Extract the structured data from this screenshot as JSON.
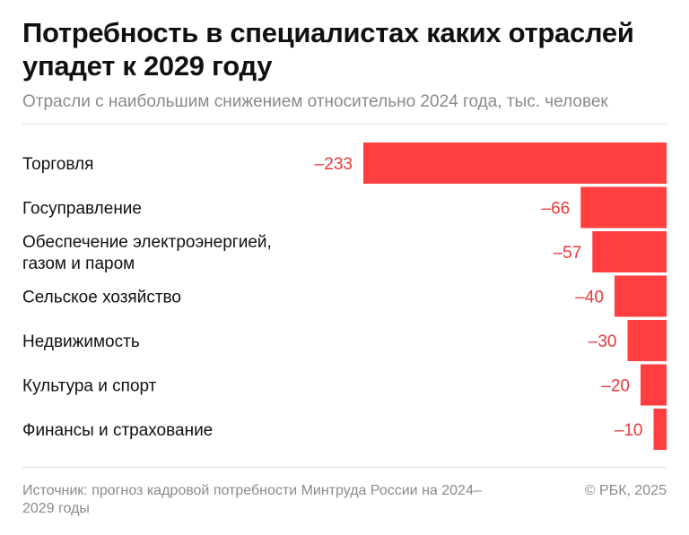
{
  "header": {
    "title": "Потребность в специалистах каких отраслей упадет к 2029 году",
    "subtitle": "Отрасли с наибольшим снижением относительно 2024 года, тыс. человек"
  },
  "footer": {
    "source": "Источник: прогноз кадровой потребности Минтруда России на 2024–2029 годы",
    "copyright": "© РБК, 2025"
  },
  "chart_data": {
    "type": "bar",
    "orientation": "horizontal",
    "categories": [
      [
        "Торговля"
      ],
      [
        "Госуправление"
      ],
      [
        "Обеспечение электроэнергией,",
        "газом и паром"
      ],
      [
        "Сельское хозяйство"
      ],
      [
        "Недвижимость"
      ],
      [
        "Культура и спорт"
      ],
      [
        "Финансы и страхование"
      ]
    ],
    "values": [
      -233,
      -66,
      -57,
      -40,
      -30,
      -20,
      -10
    ],
    "value_labels": [
      "–233",
      "–66",
      "–57",
      "–40",
      "–30",
      "–20",
      "–10"
    ],
    "bar_color": "#ff3e40",
    "value_label_color": "#e8383a",
    "xlim": [
      -233,
      0
    ],
    "grid": false,
    "legend": "none"
  }
}
